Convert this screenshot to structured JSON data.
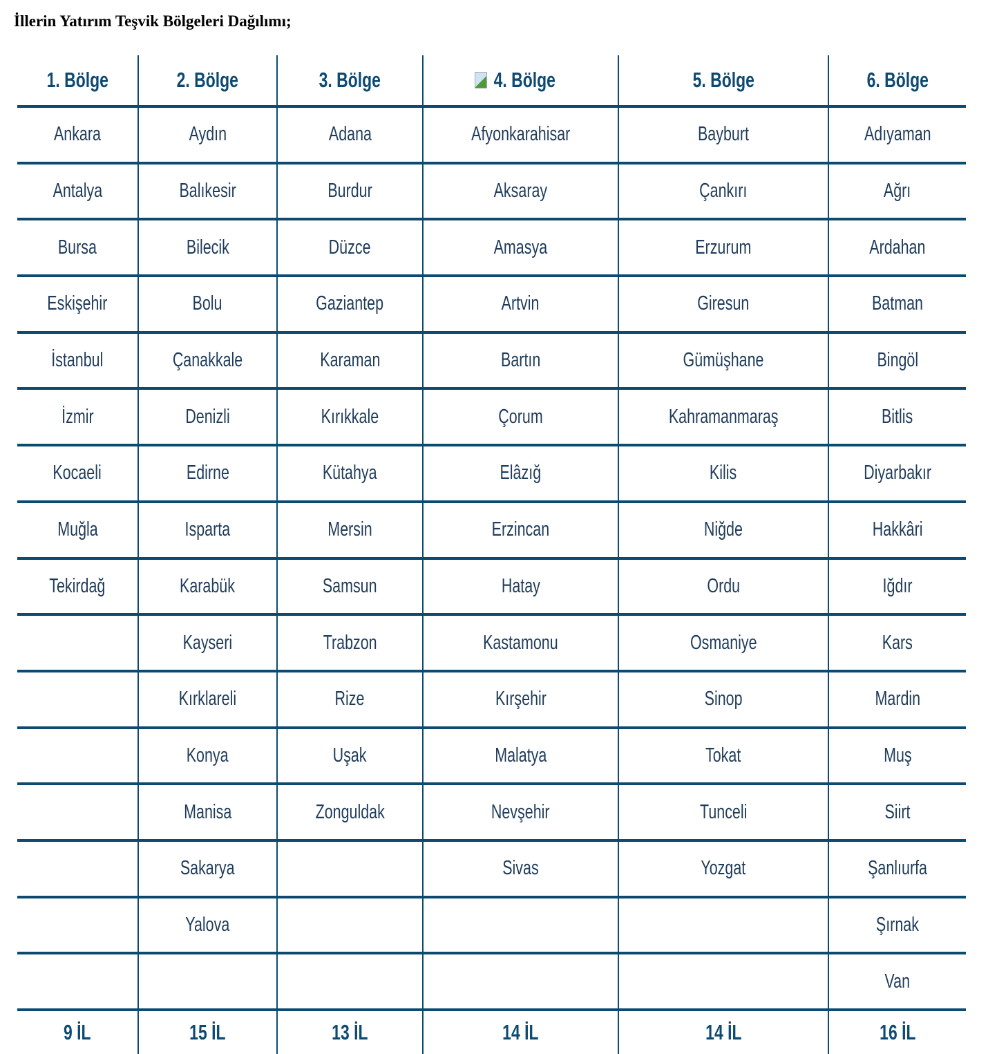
{
  "title": "İllerin Yatırım Teşvik Bölgeleri Dağılımı;",
  "colors": {
    "line": "#0d4a72",
    "header_text": "#0d4a72",
    "body_text": "#1f3c5a"
  },
  "columns": [
    {
      "header": "1. Bölge",
      "total": "9 İL",
      "cities": [
        "Ankara",
        "Antalya",
        "Bursa",
        "Eskişehir",
        "İstanbul",
        "İzmir",
        "Kocaeli",
        "Muğla",
        "Tekirdağ"
      ]
    },
    {
      "header": "2. Bölge",
      "total": "15 İL",
      "cities": [
        "Aydın",
        "Balıkesir",
        "Bilecik",
        "Bolu",
        "Çanakkale",
        "Denizli",
        "Edirne",
        "Isparta",
        "Karabük",
        "Kayseri",
        "Kırklareli",
        "Konya",
        "Manisa",
        "Sakarya",
        "Yalova"
      ]
    },
    {
      "header": "3. Bölge",
      "total": "13 İL",
      "cities": [
        "Adana",
        "Burdur",
        "Düzce",
        "Gaziantep",
        "Karaman",
        "Kırıkkale",
        "Kütahya",
        "Mersin",
        "Samsun",
        "Trabzon",
        "Rize",
        "Uşak",
        "Zonguldak"
      ]
    },
    {
      "header": "4. Bölge",
      "total": "14 İL",
      "broken_image_icon": true,
      "cities": [
        "Afyonkarahisar",
        "Aksaray",
        "Amasya",
        "Artvin",
        "Bartın",
        "Çorum",
        "Elâzığ",
        "Erzincan",
        "Hatay",
        "Kastamonu",
        "Kırşehir",
        "Malatya",
        "Nevşehir",
        "Sivas"
      ]
    },
    {
      "header": "5. Bölge",
      "total": "14 İL",
      "cities": [
        "Bayburt",
        "Çankırı",
        "Erzurum",
        "Giresun",
        "Gümüşhane",
        "Kahramanmaraş",
        "Kilis",
        "Niğde",
        "Ordu",
        "Osmaniye",
        "Sinop",
        "Tokat",
        "Tunceli",
        "Yozgat"
      ]
    },
    {
      "header": "6. Bölge",
      "total": "16 İL",
      "cities": [
        "Adıyaman",
        "Ağrı",
        "Ardahan",
        "Batman",
        "Bingöl",
        "Bitlis",
        "Diyarbakır",
        "Hakkâri",
        "Iğdır",
        "Kars",
        "Mardin",
        "Muş",
        "Siirt",
        "Şanlıurfa",
        "Şırnak",
        "Van"
      ]
    }
  ]
}
